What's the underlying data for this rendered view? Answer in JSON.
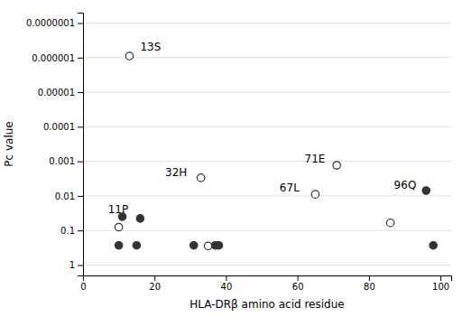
{
  "chart_data": {
    "type": "scatter",
    "xlabel": "HLA-DRβ amino acid residue",
    "ylabel": "Pc value",
    "log": "y",
    "grid": true,
    "xlim": [
      0,
      103
    ],
    "xticks": [
      0,
      20,
      40,
      60,
      80,
      100
    ],
    "ylim": [
      2.0,
      5e-08
    ],
    "yticks": [
      {
        "value": 1e-07,
        "label": "0.0000001"
      },
      {
        "value": 1e-06,
        "label": "0.000001"
      },
      {
        "value": 1e-05,
        "label": "0.00001"
      },
      0.0001,
      0.001,
      0.01,
      0.1,
      1
    ],
    "series": [
      {
        "color": "#333333",
        "marker": "circle-open",
        "x": [
          13,
          10,
          33,
          35,
          65,
          71,
          86
        ],
        "values": [
          9e-07,
          0.08,
          0.003,
          0.28,
          0.009,
          0.0013,
          0.06
        ]
      },
      {
        "color": "#333333",
        "marker": "circle",
        "x": [
          11,
          10,
          15,
          16,
          31,
          37,
          38,
          96,
          98
        ],
        "values": [
          0.04,
          0.27,
          0.27,
          0.045,
          0.27,
          0.27,
          0.27,
          0.007,
          0.27
        ]
      }
    ],
    "annotations": [
      {
        "text": "13S",
        "x": 16,
        "y": 5e-07
      },
      {
        "text": "32H",
        "x": 23,
        "y": 0.0022
      },
      {
        "text": "67L",
        "x": 55,
        "y": 0.006
      },
      {
        "text": "71E",
        "x": 62,
        "y": 0.0009
      },
      {
        "text": "11P",
        "x": 7,
        "y": 0.025
      },
      {
        "text": "96Q",
        "x": 87,
        "y": 0.005
      }
    ]
  }
}
